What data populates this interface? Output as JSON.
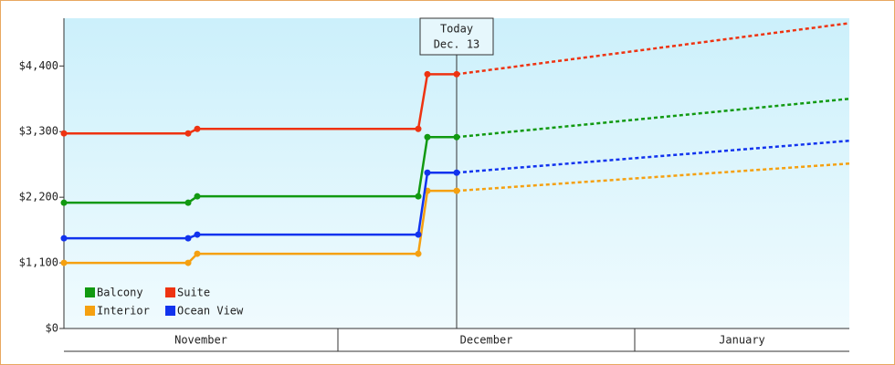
{
  "chart_data": {
    "type": "line",
    "x": [
      0,
      13.6,
      14.6,
      38.8,
      39.8,
      43
    ],
    "forecast_x": [
      43,
      86
    ],
    "xlim": [
      0,
      86
    ],
    "x_bands": [
      {
        "label": "November",
        "from": 0,
        "to": 30
      },
      {
        "label": "December",
        "from": 30,
        "to": 62.5
      },
      {
        "label": "January",
        "from": 62.5,
        "to": 86
      }
    ],
    "ylim": [
      0,
      5200
    ],
    "yticks": [
      {
        "value": 0,
        "label": "$0"
      },
      {
        "value": 1100,
        "label": "$1,100"
      },
      {
        "value": 2200,
        "label": "$2,200"
      },
      {
        "value": 3300,
        "label": "$3,300"
      },
      {
        "value": 4400,
        "label": "$4,400"
      }
    ],
    "series": [
      {
        "name": "Balcony",
        "color": "#119911",
        "values": [
          2108,
          2108,
          2215,
          2215,
          3208,
          3208
        ],
        "forecast": [
          3208,
          3850
        ]
      },
      {
        "name": "Suite",
        "color": "#ee3311",
        "values": [
          3270,
          3270,
          3346,
          3346,
          4262,
          4262
        ],
        "forecast": [
          4262,
          5118
        ]
      },
      {
        "name": "Interior",
        "color": "#f5a010",
        "values": [
          1100,
          1100,
          1253,
          1253,
          2307,
          2307
        ],
        "forecast": [
          2307,
          2765
        ]
      },
      {
        "name": "Ocean View",
        "color": "#1133ee",
        "values": [
          1512,
          1512,
          1574,
          1574,
          2612,
          2612
        ],
        "forecast": [
          2612,
          3147
        ]
      }
    ],
    "annotation": {
      "x": 43,
      "lines": [
        "Today",
        "Dec. 13"
      ]
    },
    "legend": "lower left"
  }
}
